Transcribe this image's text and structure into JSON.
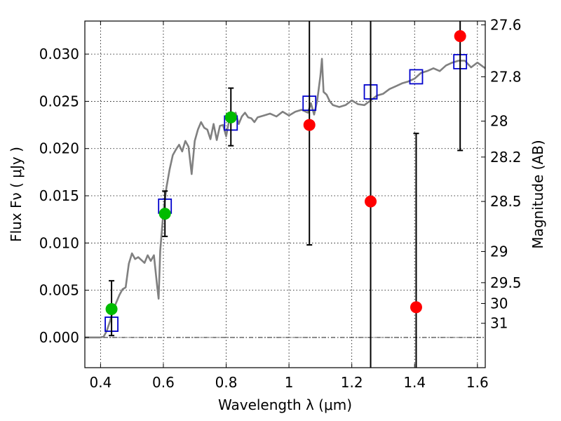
{
  "chart_data": {
    "type": "scatter",
    "xlabel": "Wavelength  λ (μm)",
    "ylabel": "Flux  Fν  ( μJy )",
    "ylabel_right": "Magnitude (AB)",
    "xlim": [
      0.35,
      1.625
    ],
    "ylim": [
      -0.0032,
      0.0335
    ],
    "grid": true,
    "x_ticks": [
      0.4,
      0.6,
      0.8,
      1.0,
      1.2,
      1.4,
      1.6
    ],
    "x_tick_labels": [
      "0.4",
      "0.6",
      "0.8",
      "1",
      "1.2",
      "1.4",
      "1.6"
    ],
    "y_ticks": [
      0.0,
      0.005,
      0.01,
      0.015,
      0.02,
      0.025,
      0.03
    ],
    "y_tick_labels": [
      "0.000",
      "0.005",
      "0.010",
      "0.015",
      "0.020",
      "0.025",
      "0.030"
    ],
    "mag_ticks": [
      {
        "label": "27.6",
        "flux": 0.0331
      },
      {
        "label": "27.8",
        "flux": 0.0276
      },
      {
        "label": "28",
        "flux": 0.0229
      },
      {
        "label": "28.2",
        "flux": 0.0191
      },
      {
        "label": "28.5",
        "flux": 0.0144
      },
      {
        "label": "29",
        "flux": 0.0091
      },
      {
        "label": "29.5",
        "flux": 0.0058
      },
      {
        "label": "30",
        "flux": 0.0036
      },
      {
        "label": "31",
        "flux": 0.0015
      }
    ],
    "reference_line_y": 0.0,
    "series": [
      {
        "kind": "line",
        "color": "#808080",
        "x": [
          0.35,
          0.4,
          0.41,
          0.42,
          0.43,
          0.44,
          0.45,
          0.46,
          0.47,
          0.48,
          0.49,
          0.5,
          0.51,
          0.52,
          0.53,
          0.54,
          0.55,
          0.56,
          0.57,
          0.58,
          0.585,
          0.59,
          0.6,
          0.61,
          0.62,
          0.63,
          0.64,
          0.65,
          0.66,
          0.67,
          0.68,
          0.69,
          0.7,
          0.71,
          0.72,
          0.73,
          0.74,
          0.75,
          0.76,
          0.77,
          0.78,
          0.79,
          0.8,
          0.81,
          0.82,
          0.83,
          0.84,
          0.85,
          0.86,
          0.87,
          0.88,
          0.89,
          0.9,
          0.92,
          0.94,
          0.96,
          0.98,
          1.0,
          1.02,
          1.04,
          1.06,
          1.07,
          1.08,
          1.09,
          1.1,
          1.105,
          1.11,
          1.12,
          1.13,
          1.14,
          1.16,
          1.18,
          1.2,
          1.22,
          1.24,
          1.26,
          1.28,
          1.3,
          1.32,
          1.34,
          1.36,
          1.38,
          1.4,
          1.42,
          1.44,
          1.46,
          1.48,
          1.5,
          1.52,
          1.54,
          1.56,
          1.58,
          1.6,
          1.625
        ],
        "values": [
          0.0,
          0.0,
          0.0001,
          0.0007,
          0.0017,
          0.0029,
          0.0037,
          0.0045,
          0.0051,
          0.0053,
          0.0078,
          0.0089,
          0.0083,
          0.0085,
          0.0082,
          0.0079,
          0.0087,
          0.0081,
          0.0087,
          0.0055,
          0.0041,
          0.0092,
          0.0133,
          0.0159,
          0.0178,
          0.0193,
          0.0199,
          0.0204,
          0.0197,
          0.0208,
          0.0202,
          0.0173,
          0.0208,
          0.022,
          0.0228,
          0.0222,
          0.022,
          0.021,
          0.0226,
          0.0209,
          0.0224,
          0.0225,
          0.0213,
          0.0231,
          0.0235,
          0.0238,
          0.0226,
          0.0234,
          0.0238,
          0.0233,
          0.0232,
          0.0228,
          0.0233,
          0.0235,
          0.0237,
          0.0234,
          0.0239,
          0.0235,
          0.0239,
          0.0241,
          0.0238,
          0.0248,
          0.0236,
          0.0251,
          0.0277,
          0.0295,
          0.026,
          0.0257,
          0.025,
          0.0246,
          0.0244,
          0.0246,
          0.0251,
          0.0247,
          0.0246,
          0.0251,
          0.0256,
          0.0258,
          0.0263,
          0.0266,
          0.0269,
          0.0271,
          0.0274,
          0.028,
          0.0282,
          0.0285,
          0.0282,
          0.0288,
          0.0291,
          0.0293,
          0.0293,
          0.0286,
          0.0291,
          0.0285
        ]
      },
      {
        "kind": "open-square",
        "color": "#0000cc",
        "x": [
          0.435,
          0.605,
          0.815,
          1.065,
          1.26,
          1.405,
          1.545
        ],
        "values": [
          0.0014,
          0.0139,
          0.0227,
          0.0248,
          0.026,
          0.0276,
          0.0292
        ]
      },
      {
        "kind": "circle-errorbar",
        "color": "#00bb00",
        "x": [
          0.435,
          0.605,
          0.815
        ],
        "values": [
          0.003,
          0.0131,
          0.0233
        ],
        "err_low": [
          0.0002,
          0.0107,
          0.0203
        ],
        "err_high": [
          0.006,
          0.0155,
          0.0264
        ]
      },
      {
        "kind": "circle-errorbar",
        "color": "#ff0000",
        "x": [
          1.065,
          1.26,
          1.405,
          1.545
        ],
        "values": [
          0.0225,
          0.0144,
          0.0032,
          0.0319
        ],
        "err_low": [
          0.0098,
          -0.0032,
          -0.0032,
          0.0198
        ],
        "err_high": [
          0.0335,
          0.0335,
          0.0216,
          0.0335
        ]
      }
    ]
  }
}
